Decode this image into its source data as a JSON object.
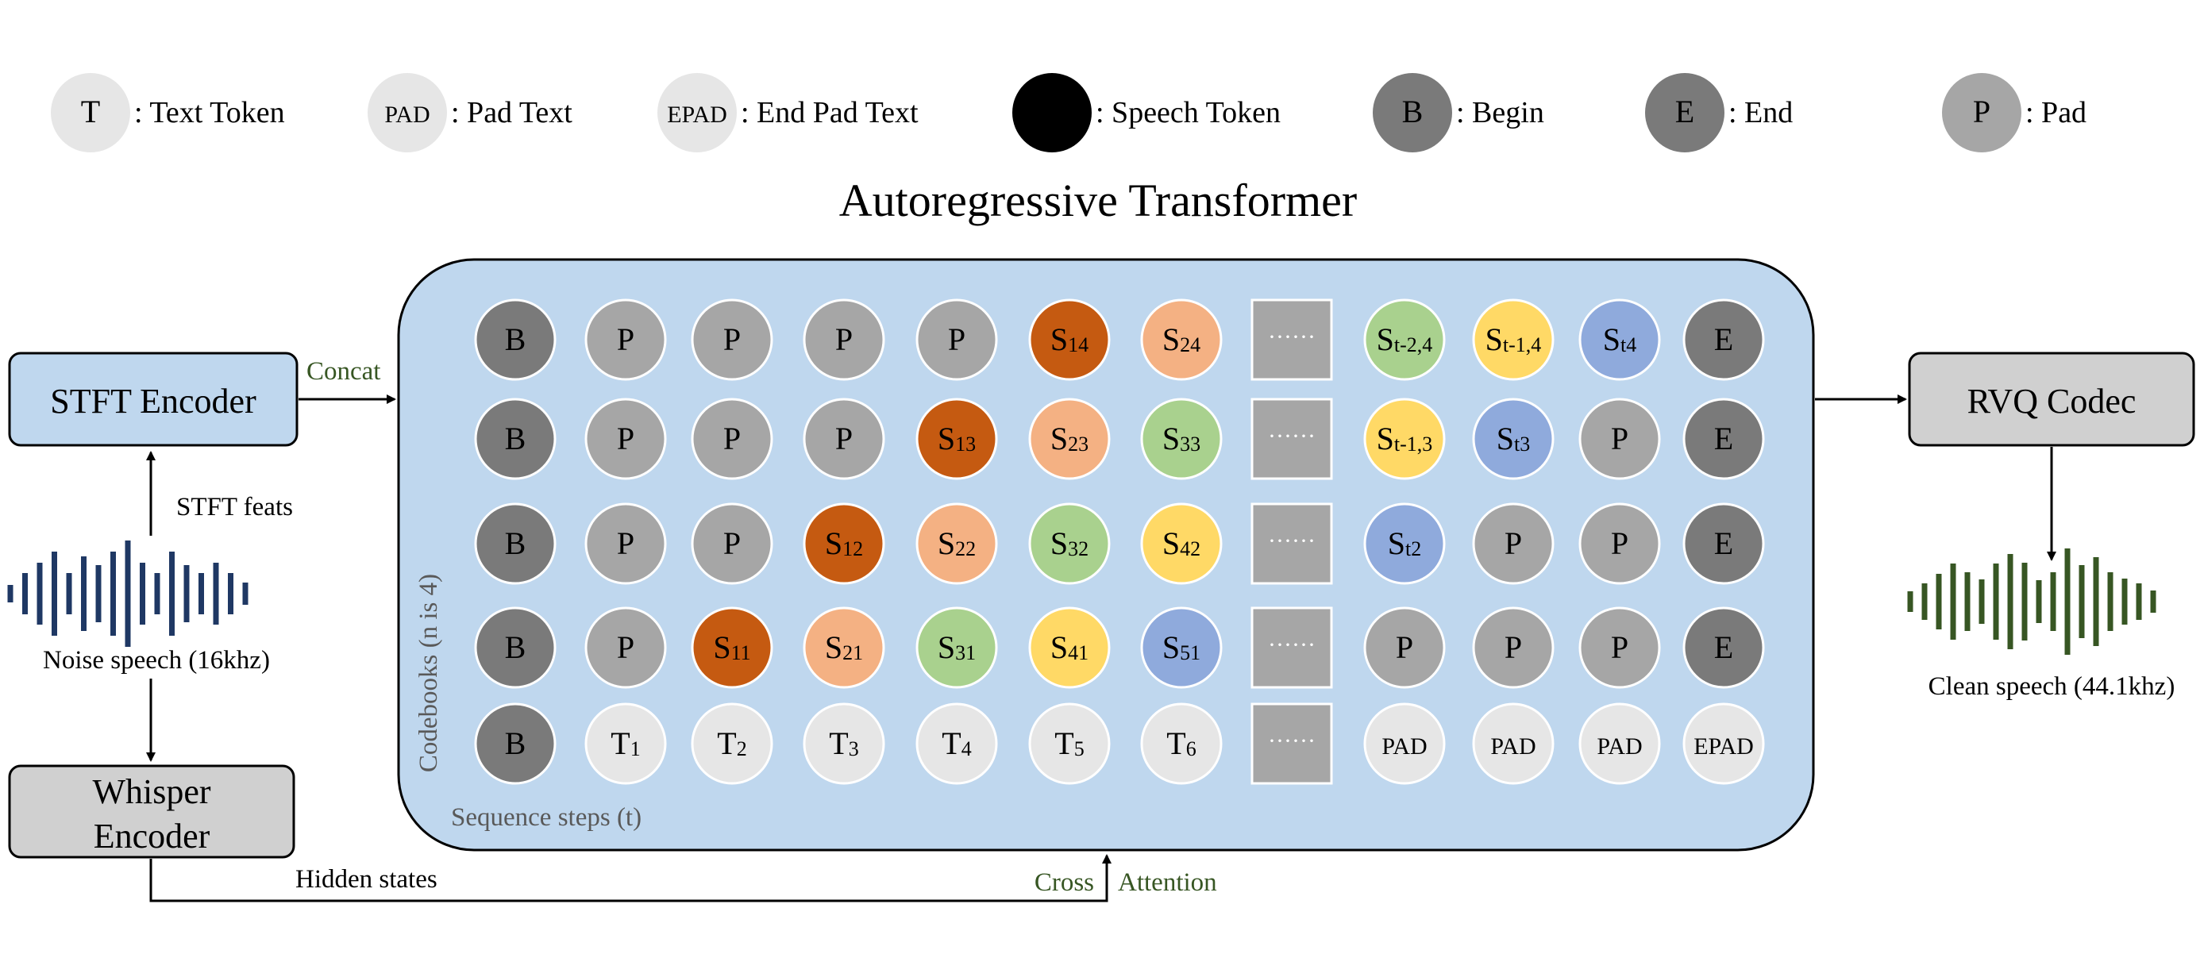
{
  "legend": [
    {
      "symbol": "T",
      "label": ": Text Token",
      "kind": "text"
    },
    {
      "symbol": "PAD",
      "label": ": Pad Text",
      "kind": "text"
    },
    {
      "symbol": "EPAD",
      "label": ": End Pad Text",
      "kind": "text"
    },
    {
      "symbol": "S",
      "label": ": Speech Token",
      "kind": "speech"
    },
    {
      "symbol": "B",
      "label": ": Begin",
      "kind": "begin"
    },
    {
      "symbol": "E",
      "label": ": End",
      "kind": "end"
    },
    {
      "symbol": "P",
      "label": ": Pad",
      "kind": "pad"
    }
  ],
  "title": "Autoregressive Transformer",
  "colors": {
    "panel_fill": "#bfd7ee",
    "encoder_fill": "#bfd7ee",
    "gray_box_fill": "#d0d0d0",
    "begin": "#7a7a7a",
    "end": "#7a7a7a",
    "pad": "#a6a6a6",
    "text": "#e6e6e6",
    "s1": "#c55a11",
    "s2": "#f4b183",
    "s3": "#a9d18e",
    "s4": "#ffd966",
    "s5": "#8faadc",
    "ellipsis_box": "#a6a6a6",
    "noise_wave": "#1f3864",
    "clean_wave": "#375623",
    "green_text": "#375623",
    "axis_text": "#595959"
  },
  "grid": {
    "rows": [
      [
        {
          "t": "B",
          "k": "begin"
        },
        {
          "t": "P",
          "k": "pad"
        },
        {
          "t": "P",
          "k": "pad"
        },
        {
          "t": "P",
          "k": "pad"
        },
        {
          "t": "P",
          "k": "pad"
        },
        {
          "t": "S",
          "s": "14",
          "k": "s1"
        },
        {
          "t": "S",
          "s": "24",
          "k": "s2"
        },
        {
          "k": "ellipsis"
        },
        {
          "t": "S",
          "s": "t-2,4",
          "k": "s3"
        },
        {
          "t": "S",
          "s": "t-1,4",
          "k": "s4"
        },
        {
          "t": "S",
          "s": "t4",
          "k": "s5"
        },
        {
          "t": "E",
          "k": "end"
        }
      ],
      [
        {
          "t": "B",
          "k": "begin"
        },
        {
          "t": "P",
          "k": "pad"
        },
        {
          "t": "P",
          "k": "pad"
        },
        {
          "t": "P",
          "k": "pad"
        },
        {
          "t": "S",
          "s": "13",
          "k": "s1"
        },
        {
          "t": "S",
          "s": "23",
          "k": "s2"
        },
        {
          "t": "S",
          "s": "33",
          "k": "s3"
        },
        {
          "k": "ellipsis"
        },
        {
          "t": "S",
          "s": "t-1,3",
          "k": "s4"
        },
        {
          "t": "S",
          "s": "t3",
          "k": "s5"
        },
        {
          "t": "P",
          "k": "pad"
        },
        {
          "t": "E",
          "k": "end"
        }
      ],
      [
        {
          "t": "B",
          "k": "begin"
        },
        {
          "t": "P",
          "k": "pad"
        },
        {
          "t": "P",
          "k": "pad"
        },
        {
          "t": "S",
          "s": "12",
          "k": "s1"
        },
        {
          "t": "S",
          "s": "22",
          "k": "s2"
        },
        {
          "t": "S",
          "s": "32",
          "k": "s3"
        },
        {
          "t": "S",
          "s": "42",
          "k": "s4"
        },
        {
          "k": "ellipsis"
        },
        {
          "t": "S",
          "s": "t2",
          "k": "s5"
        },
        {
          "t": "P",
          "k": "pad"
        },
        {
          "t": "P",
          "k": "pad"
        },
        {
          "t": "E",
          "k": "end"
        }
      ],
      [
        {
          "t": "B",
          "k": "begin"
        },
        {
          "t": "P",
          "k": "pad"
        },
        {
          "t": "S",
          "s": "11",
          "k": "s1"
        },
        {
          "t": "S",
          "s": "21",
          "k": "s2"
        },
        {
          "t": "S",
          "s": "31",
          "k": "s3"
        },
        {
          "t": "S",
          "s": "41",
          "k": "s4"
        },
        {
          "t": "S",
          "s": "51",
          "k": "s5"
        },
        {
          "k": "ellipsis"
        },
        {
          "t": "P",
          "k": "pad"
        },
        {
          "t": "P",
          "k": "pad"
        },
        {
          "t": "P",
          "k": "pad"
        },
        {
          "t": "E",
          "k": "end"
        }
      ],
      [
        {
          "t": "B",
          "k": "begin"
        },
        {
          "t": "T",
          "s": "1",
          "k": "text"
        },
        {
          "t": "T",
          "s": "2",
          "k": "text"
        },
        {
          "t": "T",
          "s": "3",
          "k": "text"
        },
        {
          "t": "T",
          "s": "4",
          "k": "text"
        },
        {
          "t": "T",
          "s": "5",
          "k": "text"
        },
        {
          "t": "T",
          "s": "6",
          "k": "text"
        },
        {
          "k": "ellipsis"
        },
        {
          "t": "PAD",
          "k": "text"
        },
        {
          "t": "PAD",
          "k": "text"
        },
        {
          "t": "PAD",
          "k": "text"
        },
        {
          "t": "EPAD",
          "k": "text"
        }
      ]
    ],
    "ellipsis_text": "······",
    "axis_vertical": "Codebooks (n is 4)",
    "axis_horizontal": "Sequence steps (t)"
  },
  "blocks": {
    "stft_encoder": "STFT Encoder",
    "whisper_encoder_line1": "Whisper",
    "whisper_encoder_line2": "Encoder",
    "rvq_codec": "RVQ Codec"
  },
  "labels": {
    "concat": "Concat",
    "stft_feats": "STFT feats",
    "noise_speech": "Noise speech (16khz)",
    "hidden_states": "Hidden states",
    "cross": "Cross",
    "attention": "Attention",
    "clean_speech": "Clean speech (44.1khz)"
  }
}
